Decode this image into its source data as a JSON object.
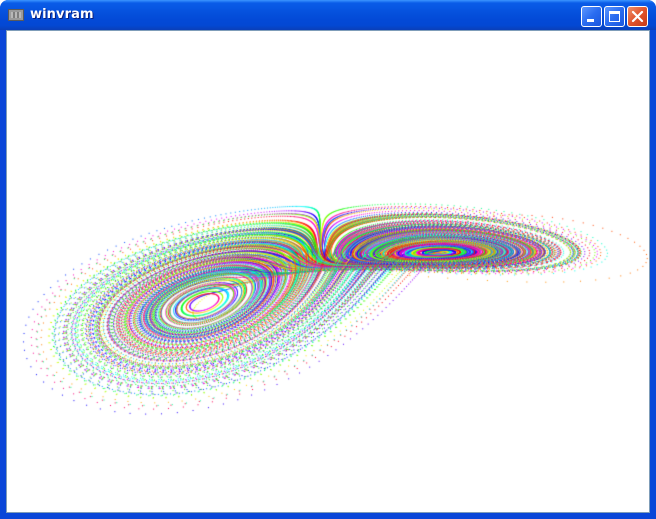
{
  "window": {
    "title": "winvram",
    "icon": "app-window-icon",
    "buttons": {
      "minimize_icon": "minimize-icon",
      "maximize_icon": "maximize-icon",
      "close_icon": "close-icon"
    }
  },
  "canvas": {
    "content": "lorenz-attractor",
    "background": "#ffffff",
    "palette": [
      "#ff0000",
      "#ff00ff",
      "#0000ff",
      "#00c0ff",
      "#00ff80",
      "#c0ff00",
      "#ffa000",
      "#8000ff"
    ]
  }
}
